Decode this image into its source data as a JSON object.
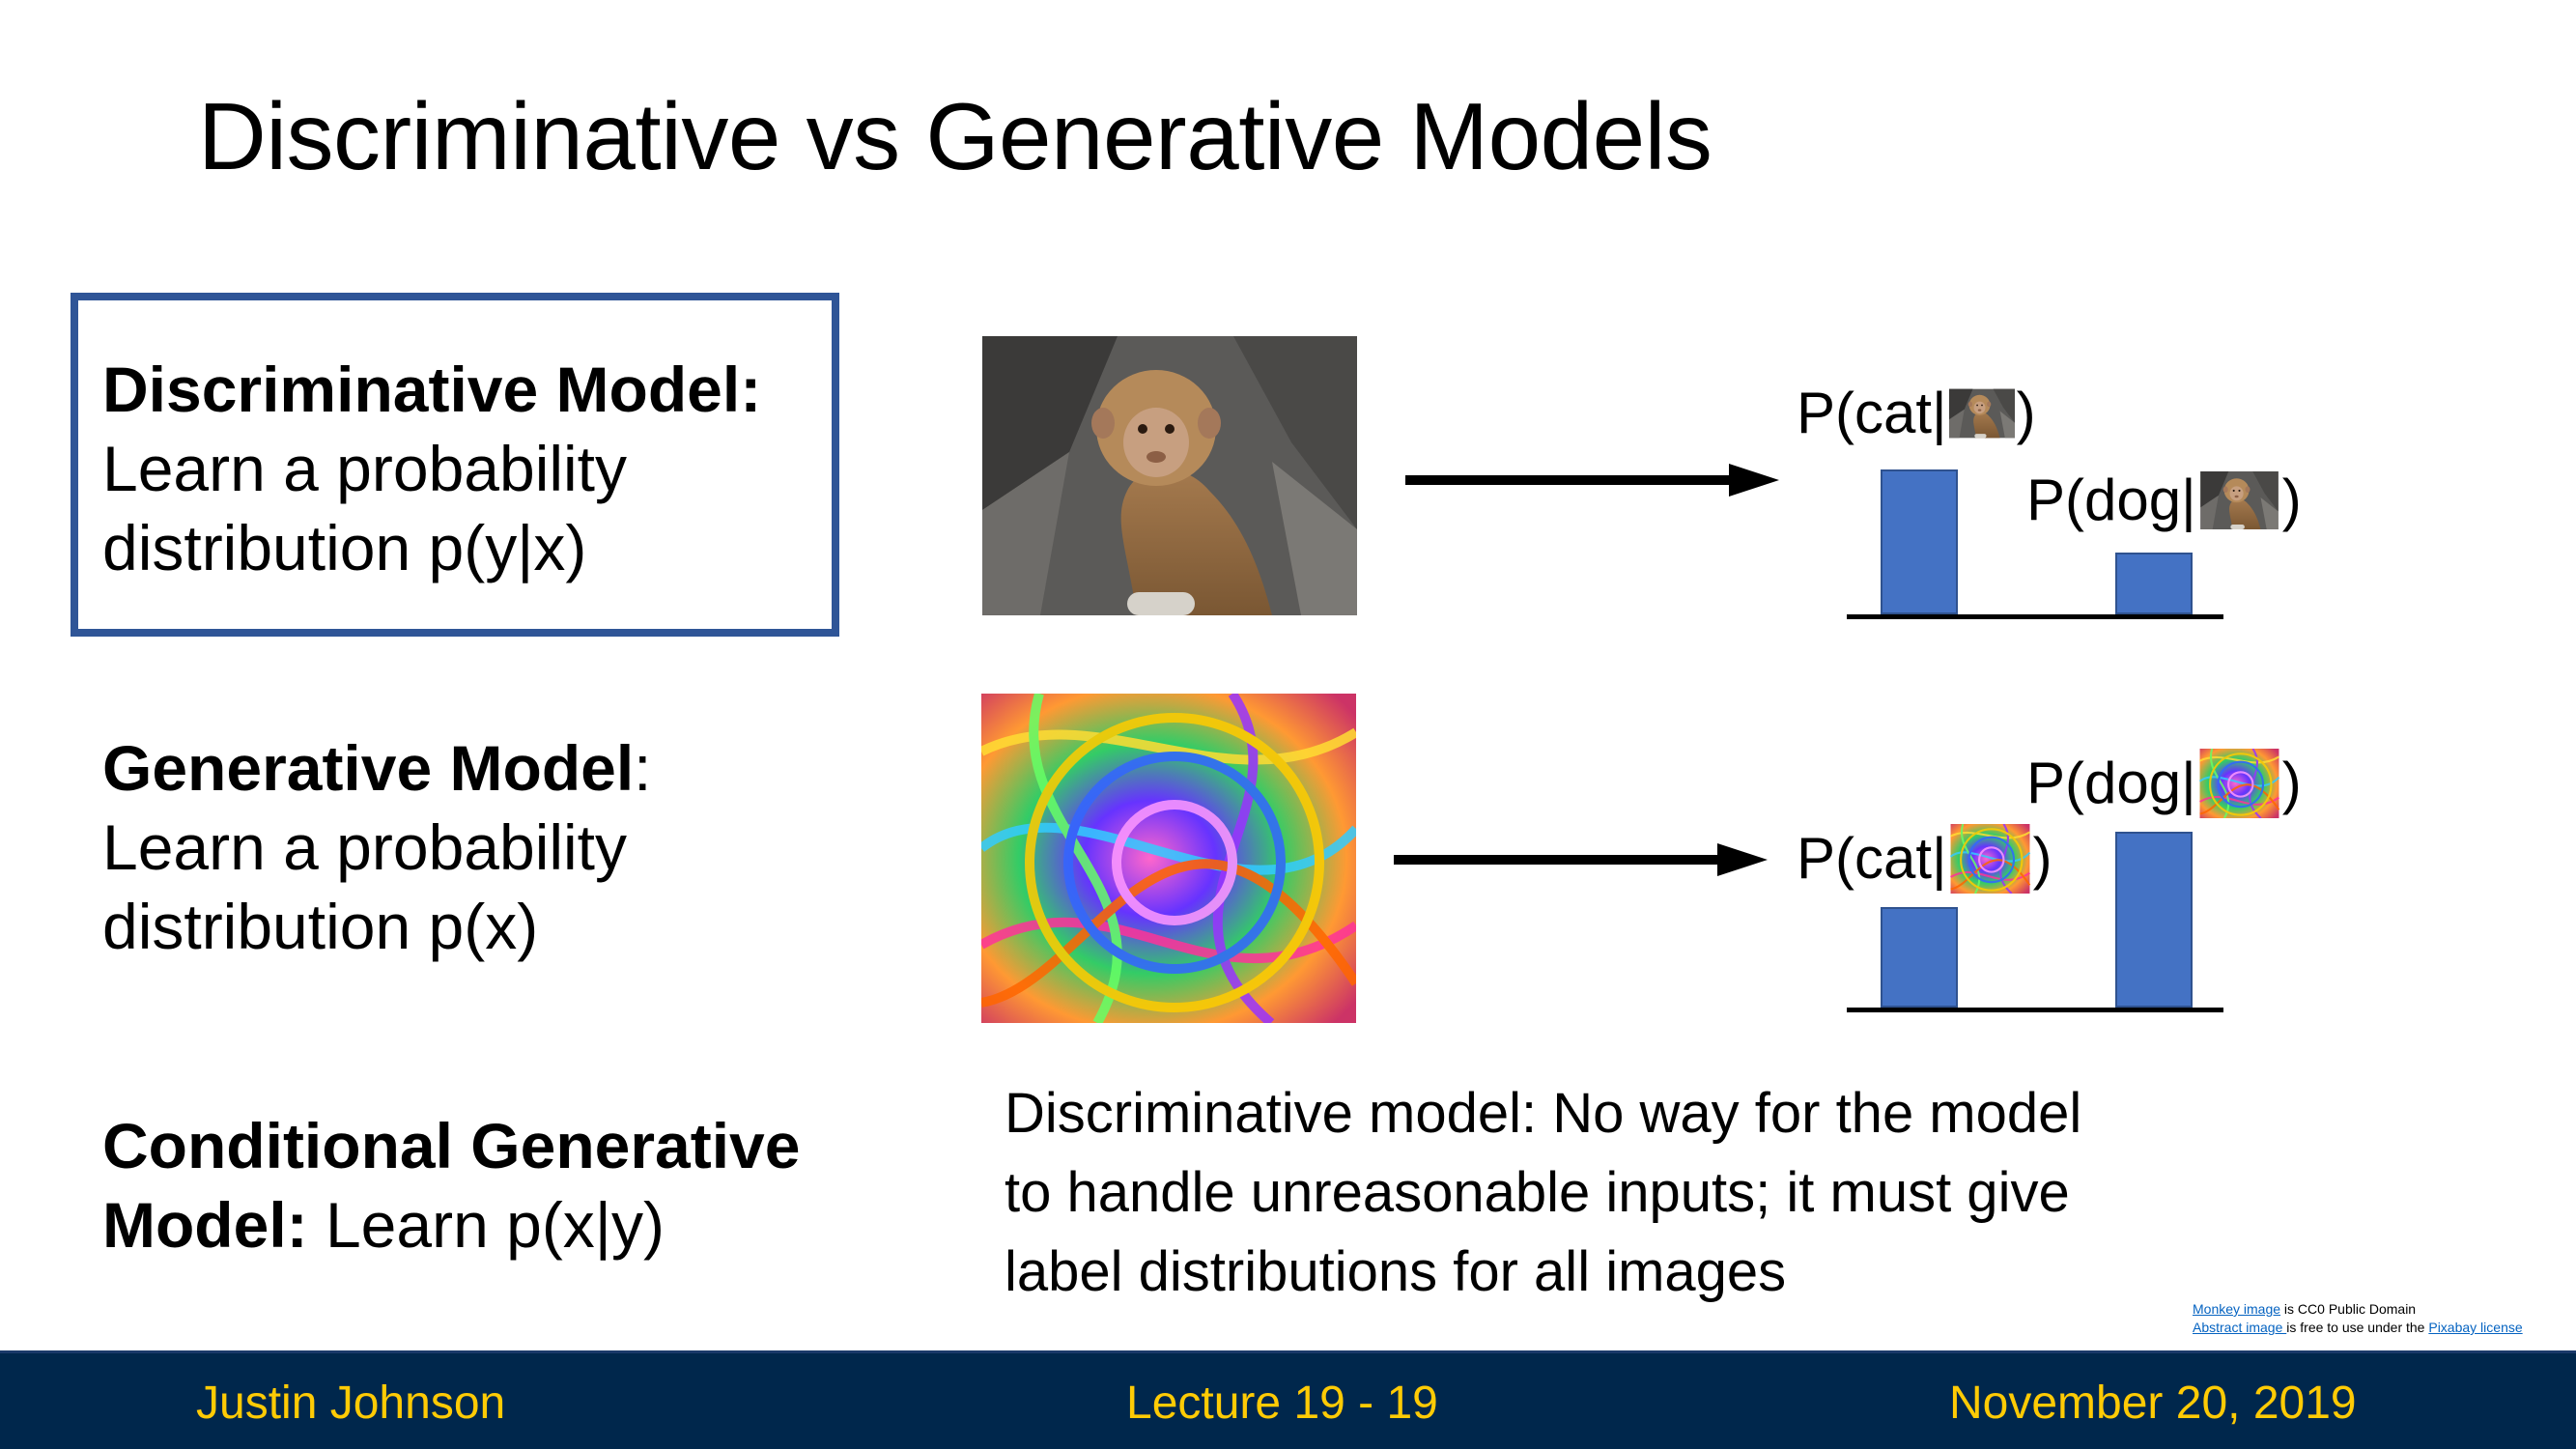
{
  "slide": {
    "title": "Discriminative vs Generative Models"
  },
  "discriminative": {
    "heading": "Discriminative Model:",
    "line1": "Learn a probability",
    "line2": "distribution p(y|x)"
  },
  "generative": {
    "heading": "Generative Model",
    "colon": ":",
    "line1": "Learn a probability",
    "line2": "distribution p(x)"
  },
  "conditional": {
    "heading1": "Conditional Generative",
    "heading2": "Model:",
    "rest": " Learn p(x|y)"
  },
  "note": {
    "line1": "Discriminative model: No way for the model",
    "line2": "to handle unreasonable inputs; it must give",
    "line3": "label distributions for all images"
  },
  "chart_data": [
    {
      "type": "bar",
      "categories": [
        "P(cat|monkey)",
        "P(dog|monkey)"
      ],
      "values": [
        0.7,
        0.3
      ],
      "labels": {
        "cat_prefix": "P(cat|",
        "dog_prefix": "P(dog|",
        "suffix": ")"
      }
    },
    {
      "type": "bar",
      "categories": [
        "P(cat|abstract)",
        "P(dog|abstract)"
      ],
      "values": [
        0.4,
        0.7
      ],
      "labels": {
        "cat_prefix": "P(cat|",
        "dog_prefix": "P(dog|",
        "suffix": ")"
      }
    }
  ],
  "credits": {
    "monkey_link": "Monkey image",
    "monkey_text": " is CC0 Public Domain",
    "abstract_link": "Abstract image ",
    "abstract_text": "is free to use under the ",
    "pixabay_link": "Pixabay license"
  },
  "footer": {
    "author": "Justin Johnson",
    "lecture": "Lecture 19 - 19",
    "date": "November 20, 2019"
  },
  "colors": {
    "bar": "#4472c4",
    "box_border": "#2f5597",
    "footer_bg": "#00274c",
    "footer_text": "#ffcb05"
  }
}
